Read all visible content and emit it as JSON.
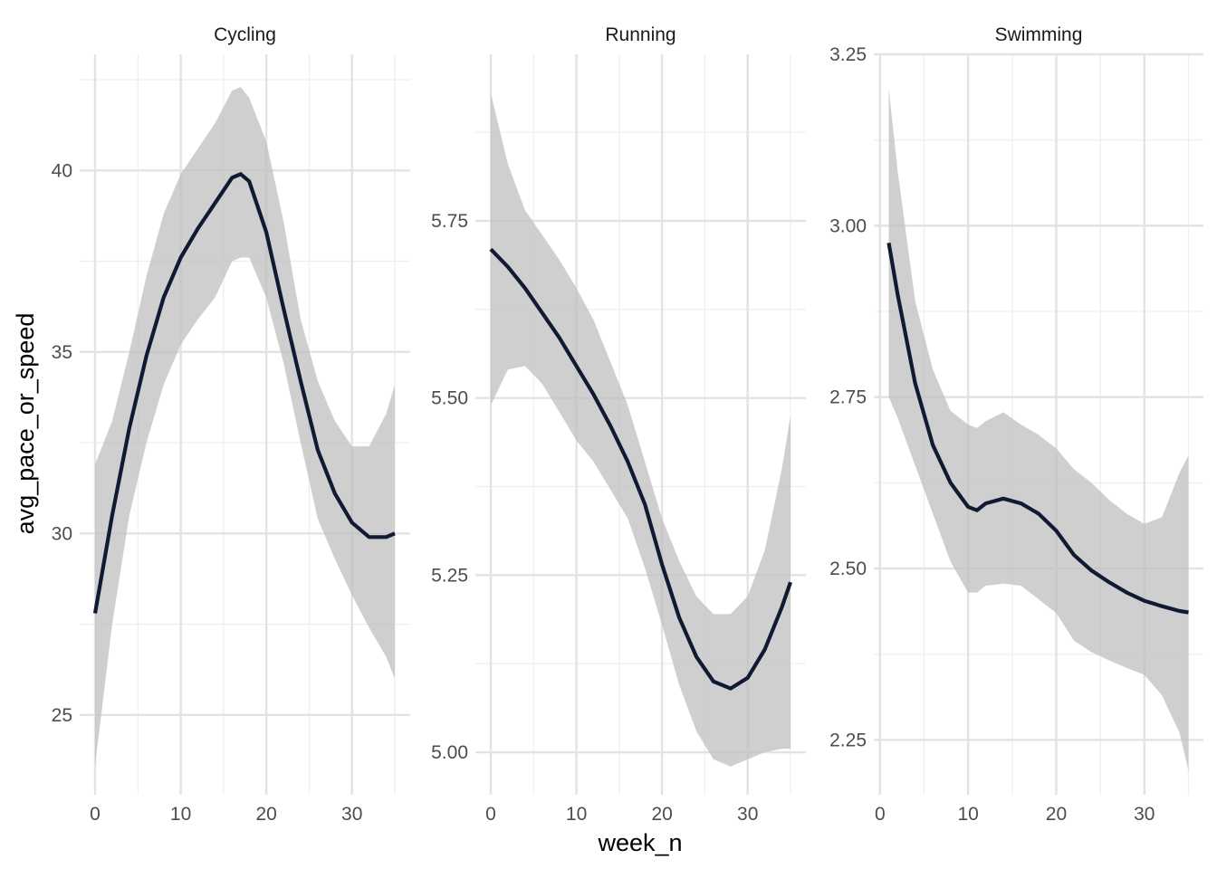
{
  "chart_data": {
    "type": "line",
    "xlabel": "week_n",
    "ylabel": "avg_pace_or_speed",
    "facet_scales": "free_y",
    "grid": true,
    "legend": "none",
    "colors": {
      "line": "#111a33",
      "ribbon": "#bfbfbf",
      "grid_major": "#e3e3e3",
      "grid_minor": "#efefef"
    },
    "panels": [
      {
        "title": "Cycling",
        "xlim": [
          -1.8,
          36.8
        ],
        "x_ticks": [
          0,
          10,
          20,
          30
        ],
        "x_tick_labels": [
          "0",
          "10",
          "20",
          "30"
        ],
        "ylim": [
          22.8,
          43.2
        ],
        "y_ticks": [
          25,
          30,
          35,
          40
        ],
        "y_tick_labels": [
          "25",
          "30",
          "35",
          "40"
        ],
        "x": [
          0,
          2,
          4,
          6,
          8,
          10,
          12,
          14,
          16,
          17,
          18,
          20,
          22,
          24,
          26,
          28,
          30,
          32,
          34,
          35
        ],
        "fit": [
          27.8,
          30.5,
          32.9,
          34.9,
          36.5,
          37.6,
          38.4,
          39.1,
          39.8,
          39.9,
          39.7,
          38.3,
          36.2,
          34.2,
          32.3,
          31.1,
          30.3,
          29.9,
          29.9,
          30.0
        ],
        "lower": [
          23.6,
          27.5,
          30.5,
          32.5,
          34.1,
          35.2,
          35.9,
          36.5,
          37.5,
          37.6,
          37.6,
          36.5,
          34.7,
          32.5,
          30.4,
          29.3,
          28.3,
          27.4,
          26.6,
          26.0
        ],
        "upper": [
          31.9,
          33.1,
          35.0,
          37.1,
          38.8,
          39.9,
          40.6,
          41.3,
          42.2,
          42.3,
          42.0,
          40.8,
          38.6,
          35.9,
          34.2,
          33.1,
          32.4,
          32.4,
          33.3,
          34.1
        ]
      },
      {
        "title": "Running",
        "xlim": [
          -1.8,
          36.8
        ],
        "x_ticks": [
          0,
          10,
          20,
          30
        ],
        "x_tick_labels": [
          "0",
          "10",
          "20",
          "30"
        ],
        "ylim": [
          4.94,
          5.985
        ],
        "y_ticks": [
          5.0,
          5.25,
          5.5,
          5.75
        ],
        "y_tick_labels": [
          "5.00",
          "5.25",
          "5.50",
          "5.75"
        ],
        "x": [
          0,
          2,
          4,
          6,
          8,
          10,
          12,
          14,
          16,
          18,
          20,
          22,
          24,
          26,
          28,
          30,
          32,
          34,
          35
        ],
        "fit": [
          5.71,
          5.685,
          5.655,
          5.62,
          5.585,
          5.545,
          5.505,
          5.46,
          5.41,
          5.35,
          5.265,
          5.19,
          5.135,
          5.1,
          5.09,
          5.105,
          5.145,
          5.205,
          5.24
        ],
        "lower": [
          5.49,
          5.54,
          5.545,
          5.52,
          5.48,
          5.44,
          5.41,
          5.37,
          5.33,
          5.26,
          5.18,
          5.095,
          5.03,
          4.99,
          4.98,
          4.99,
          5.0,
          5.005,
          5.005
        ],
        "upper": [
          5.93,
          5.83,
          5.765,
          5.73,
          5.695,
          5.655,
          5.61,
          5.55,
          5.49,
          5.41,
          5.33,
          5.27,
          5.22,
          5.195,
          5.195,
          5.22,
          5.285,
          5.4,
          5.475
        ]
      },
      {
        "title": "Swimming",
        "xlim": [
          -0.7,
          36.7
        ],
        "x_ticks": [
          0,
          10,
          20,
          30
        ],
        "x_tick_labels": [
          "0",
          "10",
          "20",
          "30"
        ],
        "ylim": [
          2.17,
          3.25
        ],
        "y_ticks": [
          2.25,
          2.5,
          2.75,
          3.0,
          3.25
        ],
        "y_tick_labels": [
          "2.25",
          "2.50",
          "2.75",
          "3.00",
          "3.25"
        ],
        "x": [
          1,
          2,
          4,
          6,
          8,
          10,
          11,
          12,
          14,
          16,
          18,
          20,
          22,
          24,
          26,
          28,
          30,
          32,
          34,
          35
        ],
        "fit": [
          2.975,
          2.9,
          2.77,
          2.68,
          2.625,
          2.59,
          2.585,
          2.595,
          2.602,
          2.595,
          2.58,
          2.555,
          2.52,
          2.497,
          2.48,
          2.465,
          2.453,
          2.445,
          2.438,
          2.436
        ],
        "lower": [
          2.75,
          2.72,
          2.65,
          2.58,
          2.51,
          2.465,
          2.465,
          2.475,
          2.478,
          2.475,
          2.455,
          2.435,
          2.395,
          2.378,
          2.366,
          2.355,
          2.345,
          2.315,
          2.26,
          2.205
        ],
        "upper": [
          3.2,
          3.08,
          2.89,
          2.79,
          2.73,
          2.71,
          2.705,
          2.715,
          2.728,
          2.71,
          2.695,
          2.675,
          2.645,
          2.625,
          2.6,
          2.58,
          2.565,
          2.575,
          2.64,
          2.665
        ]
      }
    ]
  }
}
